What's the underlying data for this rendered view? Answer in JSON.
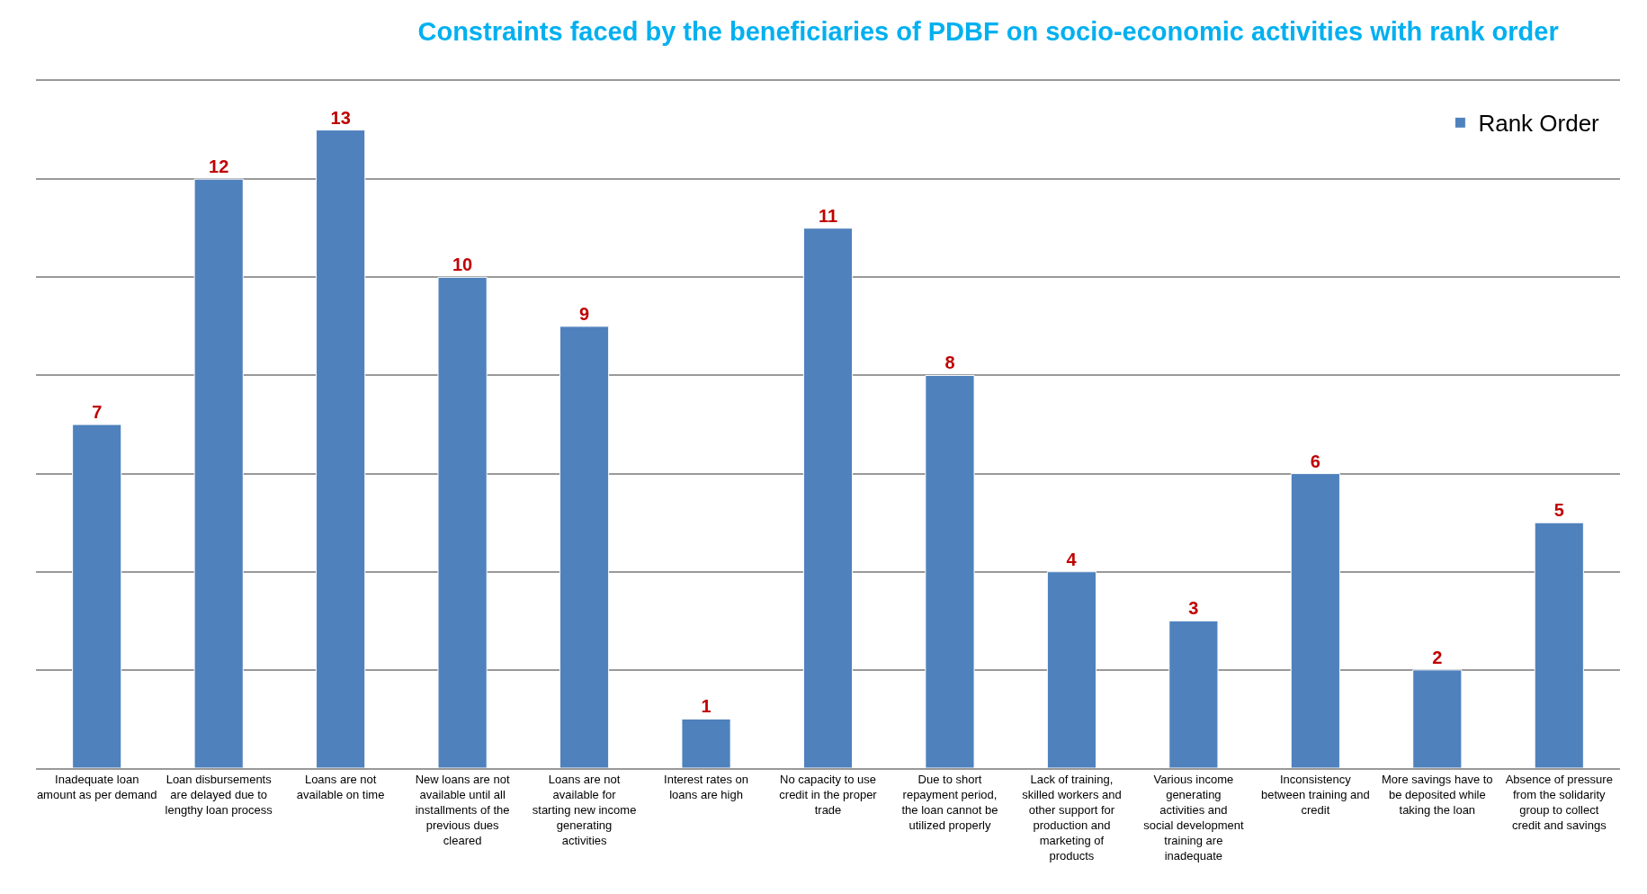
{
  "chart_data": {
    "type": "bar",
    "title": "Constraints faced by the beneficiaries of PDBF on socio-economic activities with rank order",
    "categories": [
      "Inadequate loan amount as per demand",
      "Loan disbursements are delayed due to lengthy loan process",
      "Loans are not available on time",
      "New loans are not available until all installments of the previous dues cleared",
      "Loans are not available for starting new income generating activities",
      "Interest rates on loans are high",
      "No capacity to use credit in the proper trade",
      "Due to short repayment period, the loan cannot be utilized properly",
      "Lack of training, skilled workers and other support for production and marketing of products",
      "Various income generating activities and social development training are inadequate",
      "Inconsistency between training and credit",
      "More savings have to be deposited while taking the loan",
      "Absence of pressure from the solidarity group to collect credit and savings"
    ],
    "series": [
      {
        "name": "Rank Order",
        "color": "#4f81bd",
        "values": [
          7,
          12,
          13,
          10,
          9,
          1,
          11,
          8,
          4,
          3,
          6,
          2,
          5
        ]
      }
    ],
    "ylim": [
      0,
      14
    ],
    "yticks": [
      {
        "value": 0,
        "label": null
      },
      {
        "value": 2,
        "label": null
      },
      {
        "value": 4,
        "label": null
      },
      {
        "value": 6,
        "label": null
      },
      {
        "value": 8,
        "label": null
      },
      {
        "value": 10,
        "label": null
      },
      {
        "value": 12,
        "label": null
      },
      {
        "value": 14,
        "label": null
      }
    ],
    "tick_labels": "x",
    "grid": "y",
    "legend": "top right",
    "data_labels": true
  }
}
